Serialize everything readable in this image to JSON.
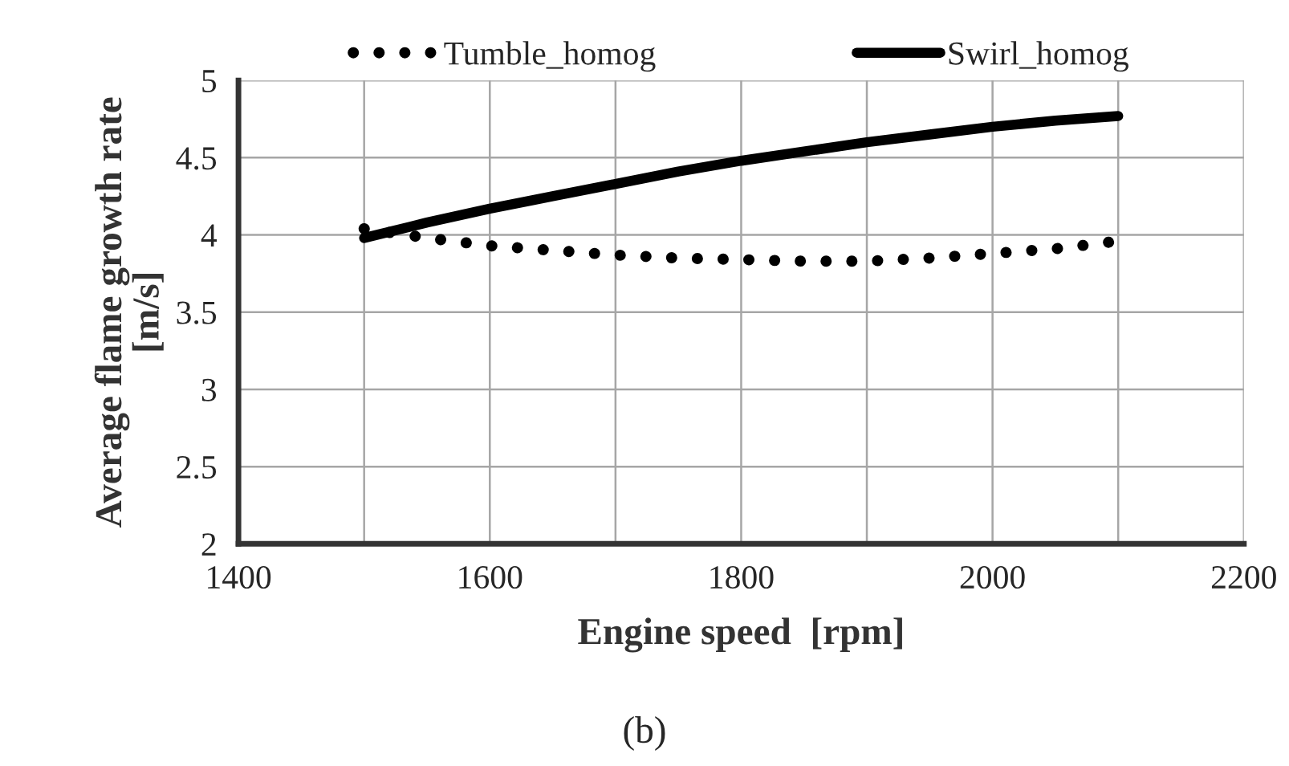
{
  "chart_data": {
    "type": "line",
    "xlabel": "Engine speed  [rpm]",
    "ylabel": "Average flame growth rate\n[m/s]",
    "annotations": [
      "(b)"
    ],
    "x": [
      1500,
      1550,
      1600,
      1650,
      1700,
      1750,
      1800,
      1850,
      1900,
      1950,
      2000,
      2050,
      2100
    ],
    "series": [
      {
        "name": "Tumble_homog",
        "color": "#000000",
        "line_style": "dotted",
        "values": [
          4.04,
          3.98,
          3.93,
          3.9,
          3.87,
          3.85,
          3.84,
          3.83,
          3.83,
          3.85,
          3.88,
          3.91,
          3.96
        ]
      },
      {
        "name": "Swirl_homog",
        "color": "#000000",
        "line_style": "solid",
        "values": [
          3.98,
          4.08,
          4.17,
          4.25,
          4.33,
          4.41,
          4.48,
          4.54,
          4.6,
          4.65,
          4.7,
          4.74,
          4.77
        ]
      }
    ],
    "xlim": [
      1400,
      2200
    ],
    "xticks": [
      1400,
      1600,
      1800,
      2000,
      2200
    ],
    "ylim": [
      2,
      5
    ],
    "yticks": [
      2,
      2.5,
      3,
      3.5,
      4,
      4.5,
      5
    ],
    "grid": true,
    "legend": "top"
  }
}
